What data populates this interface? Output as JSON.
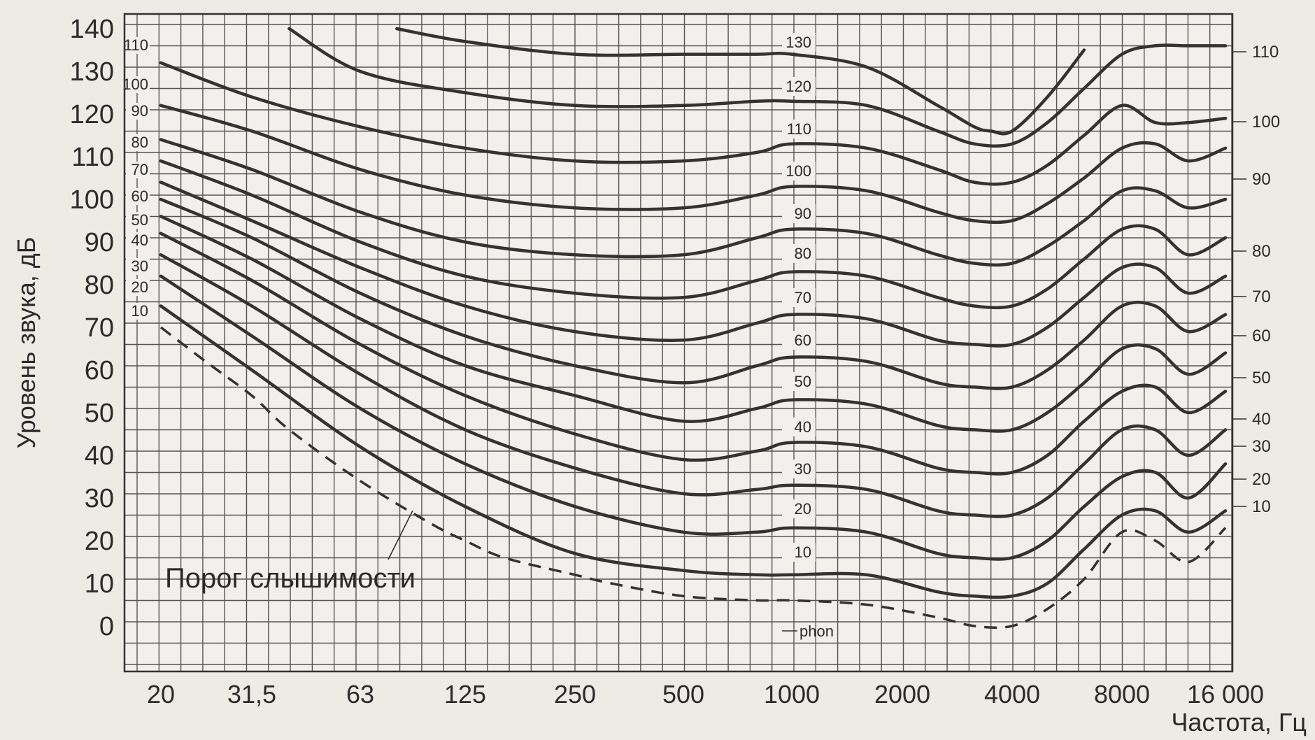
{
  "chart_data": {
    "type": "line",
    "xlabel": "Частота, Гц",
    "ylabel": "Уровень звука, дБ",
    "x_scale": "log",
    "x_ticks": [
      {
        "value": 20,
        "label": "20"
      },
      {
        "value": 31.5,
        "label": "31,5"
      },
      {
        "value": 63,
        "label": "63"
      },
      {
        "value": 125,
        "label": "125"
      },
      {
        "value": 250,
        "label": "250"
      },
      {
        "value": 500,
        "label": "500"
      },
      {
        "value": 1000,
        "label": "1000"
      },
      {
        "value": 2000,
        "label": "2000"
      },
      {
        "value": 4000,
        "label": "4000"
      },
      {
        "value": 8000,
        "label": "8000"
      },
      {
        "value": 16000,
        "label": "16 000"
      }
    ],
    "y_ticks": [
      0,
      10,
      20,
      30,
      40,
      50,
      60,
      70,
      80,
      90,
      100,
      110,
      120,
      130,
      140
    ],
    "ylim": [
      -10,
      140
    ],
    "xlim": [
      16,
      20000
    ],
    "grid": true,
    "phon_unit_label": "phon",
    "threshold": {
      "name": "Порог слышимости",
      "points": [
        [
          20,
          70
        ],
        [
          25,
          62
        ],
        [
          31.5,
          54
        ],
        [
          40,
          46
        ],
        [
          63,
          34
        ],
        [
          100,
          24
        ],
        [
          125,
          20
        ],
        [
          160,
          16
        ],
        [
          250,
          12
        ],
        [
          315,
          10
        ],
        [
          500,
          7
        ],
        [
          800,
          6
        ],
        [
          1000,
          6
        ],
        [
          1600,
          5
        ],
        [
          2500,
          2
        ],
        [
          3150,
          0
        ],
        [
          4000,
          0
        ],
        [
          5000,
          4
        ],
        [
          6300,
          11
        ],
        [
          8000,
          22
        ],
        [
          10000,
          20
        ],
        [
          12500,
          15
        ],
        [
          16000,
          23
        ]
      ]
    },
    "curve_labels_left": [
      "110",
      "100",
      "90",
      "80",
      "70",
      "60",
      "50",
      "40",
      "30",
      "20",
      "10"
    ],
    "curve_labels_mid": [
      "130",
      "120",
      "110",
      "100",
      "90",
      "80",
      "70",
      "60",
      "50",
      "40",
      "30",
      "20",
      "10"
    ],
    "curve_labels_right": [
      "110",
      "100",
      "90",
      "80",
      "70",
      "60",
      "50",
      "40",
      "30",
      "20",
      "10"
    ],
    "series": [
      {
        "phon": 10,
        "points": [
          [
            20,
            75
          ],
          [
            31.5,
            60
          ],
          [
            63,
            42
          ],
          [
            125,
            28
          ],
          [
            250,
            17
          ],
          [
            500,
            13
          ],
          [
            800,
            12
          ],
          [
            1000,
            12
          ],
          [
            1600,
            12
          ],
          [
            2500,
            8
          ],
          [
            3150,
            7
          ],
          [
            4000,
            7
          ],
          [
            5000,
            10
          ],
          [
            6300,
            18
          ],
          [
            8000,
            26
          ],
          [
            10000,
            27
          ],
          [
            12500,
            22
          ],
          [
            16000,
            27
          ]
        ]
      },
      {
        "phon": 20,
        "points": [
          [
            20,
            82
          ],
          [
            31.5,
            68
          ],
          [
            63,
            51
          ],
          [
            125,
            38
          ],
          [
            250,
            28
          ],
          [
            500,
            22
          ],
          [
            800,
            22
          ],
          [
            1000,
            23
          ],
          [
            1600,
            22
          ],
          [
            2500,
            17
          ],
          [
            3150,
            16
          ],
          [
            4000,
            16
          ],
          [
            5000,
            20
          ],
          [
            6300,
            28
          ],
          [
            8000,
            35
          ],
          [
            10000,
            36
          ],
          [
            12500,
            30
          ],
          [
            16000,
            38
          ]
        ]
      },
      {
        "phon": 30,
        "points": [
          [
            20,
            87
          ],
          [
            31.5,
            75
          ],
          [
            63,
            59
          ],
          [
            125,
            46
          ],
          [
            250,
            37
          ],
          [
            500,
            31
          ],
          [
            800,
            32
          ],
          [
            1000,
            33
          ],
          [
            1600,
            32
          ],
          [
            2500,
            27
          ],
          [
            3150,
            26
          ],
          [
            4000,
            26
          ],
          [
            5000,
            30
          ],
          [
            6300,
            38
          ],
          [
            8000,
            46
          ],
          [
            10000,
            46
          ],
          [
            12500,
            40
          ],
          [
            16000,
            46
          ]
        ]
      },
      {
        "phon": 40,
        "points": [
          [
            20,
            92
          ],
          [
            31.5,
            81
          ],
          [
            63,
            66
          ],
          [
            125,
            54
          ],
          [
            250,
            45
          ],
          [
            500,
            39
          ],
          [
            800,
            41
          ],
          [
            1000,
            43
          ],
          [
            1600,
            42
          ],
          [
            2500,
            37
          ],
          [
            3150,
            36
          ],
          [
            4000,
            36
          ],
          [
            5000,
            40
          ],
          [
            6300,
            48
          ],
          [
            8000,
            55
          ],
          [
            10000,
            56
          ],
          [
            12500,
            50
          ],
          [
            16000,
            55
          ]
        ]
      },
      {
        "phon": 50,
        "points": [
          [
            20,
            96
          ],
          [
            31.5,
            86
          ],
          [
            63,
            72
          ],
          [
            125,
            61
          ],
          [
            250,
            54
          ],
          [
            500,
            48
          ],
          [
            800,
            51
          ],
          [
            1000,
            53
          ],
          [
            1600,
            52
          ],
          [
            2500,
            47
          ],
          [
            3150,
            46
          ],
          [
            4000,
            46
          ],
          [
            5000,
            50
          ],
          [
            6300,
            57
          ],
          [
            8000,
            65
          ],
          [
            10000,
            65
          ],
          [
            12500,
            59
          ],
          [
            16000,
            64
          ]
        ]
      },
      {
        "phon": 60,
        "points": [
          [
            20,
            100
          ],
          [
            31.5,
            91
          ],
          [
            63,
            78
          ],
          [
            125,
            68
          ],
          [
            250,
            61
          ],
          [
            500,
            57
          ],
          [
            800,
            61
          ],
          [
            1000,
            63
          ],
          [
            1600,
            62
          ],
          [
            2500,
            57
          ],
          [
            3150,
            56
          ],
          [
            4000,
            56
          ],
          [
            5000,
            60
          ],
          [
            6300,
            67
          ],
          [
            8000,
            75
          ],
          [
            10000,
            75
          ],
          [
            12500,
            69
          ],
          [
            16000,
            73
          ]
        ]
      },
      {
        "phon": 70,
        "points": [
          [
            20,
            104
          ],
          [
            31.5,
            95
          ],
          [
            63,
            84
          ],
          [
            125,
            75
          ],
          [
            250,
            69
          ],
          [
            500,
            67
          ],
          [
            800,
            71
          ],
          [
            1000,
            73
          ],
          [
            1600,
            72
          ],
          [
            2500,
            67
          ],
          [
            3150,
            66
          ],
          [
            4000,
            66
          ],
          [
            5000,
            70
          ],
          [
            6300,
            77
          ],
          [
            8000,
            84
          ],
          [
            10000,
            84
          ],
          [
            12500,
            78
          ],
          [
            16000,
            82
          ]
        ]
      },
      {
        "phon": 80,
        "points": [
          [
            20,
            109
          ],
          [
            31.5,
            101
          ],
          [
            63,
            90
          ],
          [
            125,
            82
          ],
          [
            250,
            78
          ],
          [
            500,
            77
          ],
          [
            800,
            81
          ],
          [
            1000,
            83
          ],
          [
            1600,
            82
          ],
          [
            2500,
            77
          ],
          [
            3150,
            75
          ],
          [
            4000,
            75
          ],
          [
            5000,
            79
          ],
          [
            6300,
            86
          ],
          [
            8000,
            93
          ],
          [
            10000,
            93
          ],
          [
            12500,
            87
          ],
          [
            16000,
            91
          ]
        ]
      },
      {
        "phon": 90,
        "points": [
          [
            20,
            114
          ],
          [
            31.5,
            107
          ],
          [
            63,
            97
          ],
          [
            125,
            90
          ],
          [
            250,
            87
          ],
          [
            500,
            87
          ],
          [
            800,
            91
          ],
          [
            1000,
            93
          ],
          [
            1600,
            92
          ],
          [
            2500,
            87
          ],
          [
            3150,
            85
          ],
          [
            4000,
            85
          ],
          [
            5000,
            89
          ],
          [
            6300,
            95
          ],
          [
            8000,
            102
          ],
          [
            10000,
            102
          ],
          [
            12500,
            98
          ],
          [
            16000,
            100
          ]
        ]
      },
      {
        "phon": 100,
        "points": [
          [
            20,
            122
          ],
          [
            31.5,
            116
          ],
          [
            63,
            107
          ],
          [
            125,
            101
          ],
          [
            250,
            98
          ],
          [
            500,
            98
          ],
          [
            800,
            101
          ],
          [
            1000,
            103
          ],
          [
            1600,
            102
          ],
          [
            2500,
            97
          ],
          [
            3150,
            95
          ],
          [
            4000,
            95
          ],
          [
            5000,
            99
          ],
          [
            6300,
            105
          ],
          [
            8000,
            112
          ],
          [
            10000,
            113
          ],
          [
            12500,
            109
          ],
          [
            16000,
            112
          ]
        ]
      },
      {
        "phon": 110,
        "points": [
          [
            20,
            132
          ],
          [
            31.5,
            124
          ],
          [
            63,
            117
          ],
          [
            125,
            112
          ],
          [
            250,
            109
          ],
          [
            500,
            109
          ],
          [
            800,
            111
          ],
          [
            1000,
            113
          ],
          [
            1600,
            112
          ],
          [
            2500,
            107
          ],
          [
            3150,
            104
          ],
          [
            4000,
            104
          ],
          [
            5000,
            108
          ],
          [
            6300,
            115
          ],
          [
            8000,
            122
          ],
          [
            10000,
            118
          ],
          [
            12500,
            118
          ],
          [
            16000,
            119
          ]
        ]
      },
      {
        "phon": 120,
        "points": [
          [
            40,
            140
          ],
          [
            63,
            130
          ],
          [
            125,
            125
          ],
          [
            250,
            122
          ],
          [
            500,
            122
          ],
          [
            800,
            123
          ],
          [
            1000,
            123
          ],
          [
            1600,
            122
          ],
          [
            2500,
            116
          ],
          [
            3150,
            113
          ],
          [
            4000,
            113
          ],
          [
            5000,
            118
          ],
          [
            6300,
            126
          ],
          [
            8000,
            134
          ],
          [
            10000,
            136
          ],
          [
            12500,
            136
          ],
          [
            16000,
            136
          ]
        ]
      },
      {
        "phon": 130,
        "points": [
          [
            80,
            140
          ],
          [
            125,
            137
          ],
          [
            250,
            134
          ],
          [
            500,
            134
          ],
          [
            800,
            134
          ],
          [
            1000,
            134
          ],
          [
            1600,
            131
          ],
          [
            2500,
            122
          ],
          [
            3150,
            117
          ],
          [
            3500,
            116
          ],
          [
            4000,
            116
          ],
          [
            5000,
            124
          ],
          [
            6300,
            135
          ]
        ]
      }
    ]
  }
}
